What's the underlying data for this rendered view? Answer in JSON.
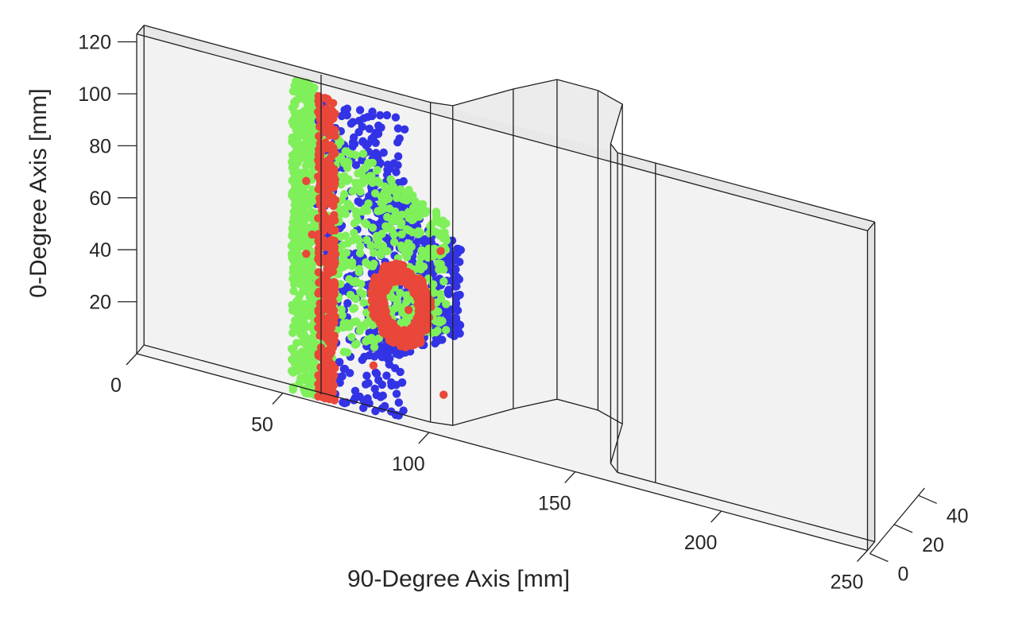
{
  "chart_data": {
    "type": "scatter",
    "projection": "3d",
    "title": "",
    "xlabel": "90-Degree Axis [mm]",
    "ylabel": "0-Degree Axis [mm]",
    "zlabel": "",
    "xlim": [
      0,
      250
    ],
    "ylim": [
      0,
      125
    ],
    "zlim": [
      0,
      45
    ],
    "x_ticks": [
      "0",
      "50",
      "100",
      "150",
      "200",
      "250"
    ],
    "y_ticks": [
      "20",
      "40",
      "60",
      "80",
      "100",
      "120"
    ],
    "z_ticks": [
      "0",
      "20",
      "40"
    ],
    "grid": false,
    "legend": "none",
    "specimen": {
      "panel_length_mm": 250,
      "panel_height_mm": 123,
      "stiffener_x_range_mm": [
        98,
        175
      ],
      "stiffener_depth_mm": 38
    },
    "series": [
      {
        "color": "#3333e6",
        "regions": [
          {
            "x": [
              61,
              92
            ],
            "y": [
              2,
              118
            ]
          },
          {
            "x": [
              80,
              111
            ],
            "y": [
              20,
              95
            ]
          }
        ]
      },
      {
        "color": "#7ff05a",
        "regions": [
          {
            "x": [
              53,
              61
            ],
            "y": [
              2,
              122
            ]
          },
          {
            "x": [
              61,
              106
            ],
            "y": [
              15,
              110
            ]
          }
        ]
      },
      {
        "color": "#e8473a",
        "regions": [
          {
            "x": [
              62,
              68
            ],
            "y": [
              2,
              118
            ]
          },
          {
            "x": [
              80,
              101
            ],
            "y": [
              30,
              62
            ]
          }
        ],
        "points": [
          [
            58,
            84
          ],
          [
            60,
            64
          ],
          [
            62,
            64
          ],
          [
            58,
            56
          ],
          [
            105,
            16
          ],
          [
            63,
            18
          ],
          [
            81,
            20
          ],
          [
            104,
            71
          ],
          [
            93,
            45
          ]
        ]
      }
    ]
  }
}
